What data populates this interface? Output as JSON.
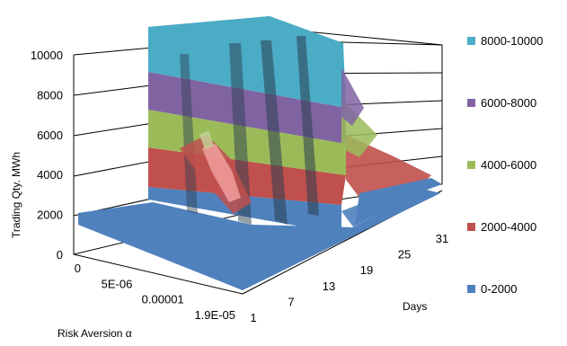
{
  "chart_data": {
    "type": "surface",
    "zlabel": "Trading Qty. MWh",
    "xlabel": "Days",
    "ylabel": "Risk Aversion α",
    "zlim": [
      0,
      10000
    ],
    "z_ticks": [
      "0",
      "2000",
      "4000",
      "6000",
      "8000",
      "10000"
    ],
    "day_ticks": [
      "1",
      "7",
      "13",
      "19",
      "25",
      "31"
    ],
    "risk_ticks": [
      "0",
      "5E-06",
      "0.00001",
      "1.9E-05"
    ],
    "legend": [
      {
        "label": "8000-10000",
        "color": "#4bacc6"
      },
      {
        "label": "6000-8000",
        "color": "#8064a2"
      },
      {
        "label": "4000-6000",
        "color": "#9bbb59"
      },
      {
        "label": "2000-4000",
        "color": "#c0504d"
      },
      {
        "label": "0-2000",
        "color": "#4f81bd"
      }
    ],
    "grid": true,
    "legend_position": "right"
  }
}
